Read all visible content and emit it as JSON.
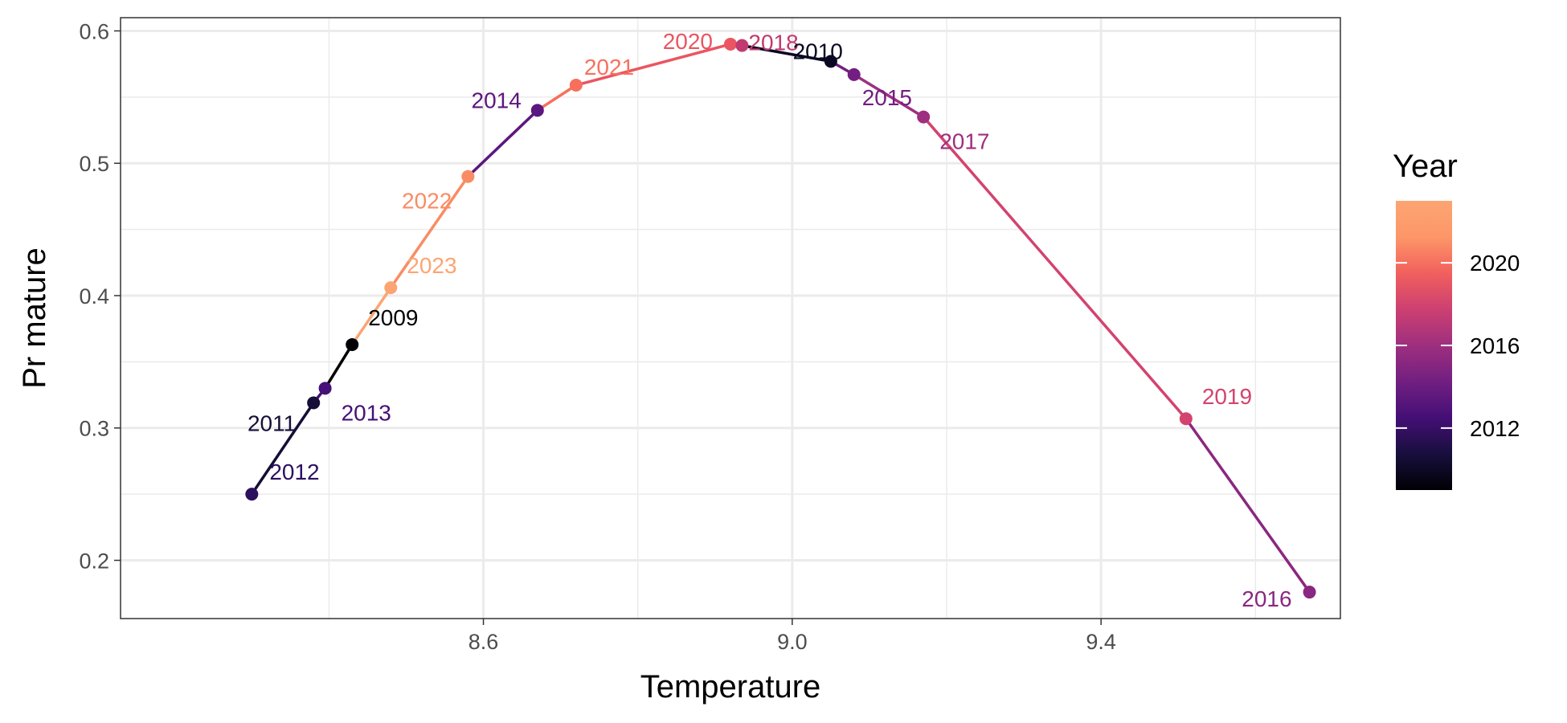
{
  "chart_data": {
    "type": "line",
    "xlabel": "Temperature",
    "ylabel": "Pr mature",
    "xlim": [
      8.13,
      9.71
    ],
    "ylim": [
      0.156,
      0.61
    ],
    "x_ticks": [
      8.6,
      9.0,
      9.4
    ],
    "y_ticks": [
      0.2,
      0.3,
      0.4,
      0.5,
      0.6
    ],
    "x_tick_labels": [
      "8.6",
      "9.0",
      "9.4"
    ],
    "y_tick_labels": [
      "0.2",
      "0.3",
      "0.4",
      "0.5",
      "0.6"
    ],
    "grid": true,
    "color_scale": "magma",
    "legend": {
      "title": "Year",
      "position": "right",
      "range": [
        2009,
        2023
      ],
      "breaks": [
        2012,
        2016,
        2020
      ],
      "break_labels": [
        "2012",
        "2016",
        "2020"
      ]
    },
    "points": [
      {
        "year": 2012,
        "label": "2012",
        "x": 8.3,
        "y": 0.25,
        "color": "#2c115f"
      },
      {
        "year": 2011,
        "label": "2011",
        "x": 8.38,
        "y": 0.319,
        "color": "#150e37"
      },
      {
        "year": 2013,
        "label": "2013",
        "x": 8.395,
        "y": 0.33,
        "color": "#451077"
      },
      {
        "year": 2009,
        "label": "2009",
        "x": 8.43,
        "y": 0.363,
        "color": "#000004"
      },
      {
        "year": 2023,
        "label": "2023",
        "x": 8.48,
        "y": 0.406,
        "color": "#fca572"
      },
      {
        "year": 2022,
        "label": "2022",
        "x": 8.58,
        "y": 0.49,
        "color": "#f98c63"
      },
      {
        "year": 2014,
        "label": "2014",
        "x": 8.67,
        "y": 0.54,
        "color": "#5c167f"
      },
      {
        "year": 2021,
        "label": "2021",
        "x": 8.72,
        "y": 0.559,
        "color": "#f7705c"
      },
      {
        "year": 2020,
        "label": "2020",
        "x": 8.92,
        "y": 0.59,
        "color": "#ea5561"
      },
      {
        "year": 2018,
        "label": "2018",
        "x": 8.935,
        "y": 0.589,
        "color": "#c13a6f"
      },
      {
        "year": 2010,
        "label": "2010",
        "x": 9.05,
        "y": 0.577,
        "color": "#0a0822"
      },
      {
        "year": 2015,
        "label": "2015",
        "x": 9.08,
        "y": 0.567,
        "color": "#721f81"
      },
      {
        "year": 2017,
        "label": "2017",
        "x": 9.17,
        "y": 0.535,
        "color": "#9f2f7f"
      },
      {
        "year": 2019,
        "label": "2019",
        "x": 9.51,
        "y": 0.307,
        "color": "#d3436e"
      },
      {
        "year": 2016,
        "label": "2016",
        "x": 9.67,
        "y": 0.176,
        "color": "#8a2781"
      }
    ]
  }
}
